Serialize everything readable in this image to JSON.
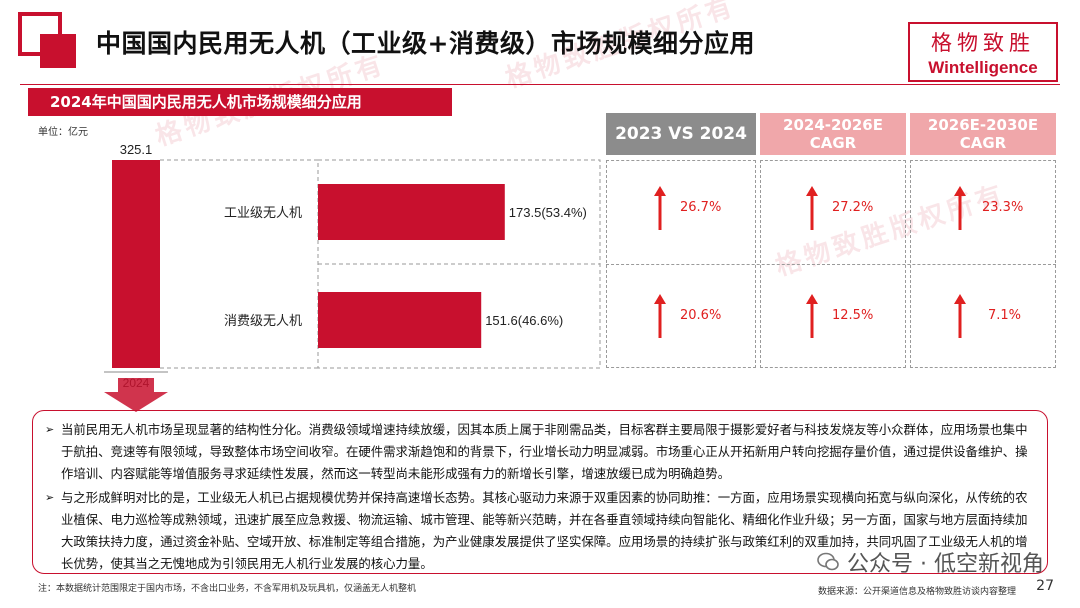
{
  "header": {
    "title": "中国国内民用无人机（工业级+消费级）市场规模细分应用",
    "brand_cn": "格物致胜",
    "brand_en": "Wintelligence"
  },
  "sub_banner": "2024年中国国内民用无人机市场规模细分应用",
  "unit_label": "单位：亿元",
  "watermark_text": "格物致胜版权所有",
  "colors": {
    "accent": "#c8102e",
    "gray_header": "#8c8c8c",
    "pink_header": "#f0a7aa",
    "value_red": "#e02020"
  },
  "chart_data": {
    "type": "bar",
    "total": {
      "label": "325.1",
      "value": 325.1,
      "year": "2024"
    },
    "categories": [
      "工业级无人机",
      "消费级无人机"
    ],
    "values": [
      173.5,
      151.6
    ],
    "data_labels": [
      "173.5(53.4%)",
      "151.6(46.6%)"
    ],
    "shares_percent": [
      53.4,
      46.6
    ]
  },
  "growth_table": {
    "headers": [
      "2023 VS 2024",
      "2024-2026E\nCAGR",
      "2026E-2030E\nCAGR"
    ],
    "rows": [
      {
        "segment": "工业级无人机",
        "values": [
          "26.7%",
          "27.2%",
          "23.3%"
        ],
        "trend": [
          "up",
          "up",
          "up"
        ]
      },
      {
        "segment": "消费级无人机",
        "values": [
          "20.6%",
          "12.5%",
          "7.1%"
        ],
        "trend": [
          "up",
          "up",
          "up"
        ]
      }
    ]
  },
  "notes": [
    "当前民用无人机市场呈现显著的结构性分化。消费级领域增速持续放缓，因其本质上属于非刚需品类，目标客群主要局限于摄影爱好者与科技发烧友等小众群体，应用场景也集中于航拍、竞速等有限领域，导致整体市场空间收窄。在硬件需求渐趋饱和的背景下，行业增长动力明显减弱。市场重心正从开拓新用户转向挖掘存量价值，通过提供设备维护、操作培训、内容赋能等增值服务寻求延续性发展，然而这一转型尚未能形成强有力的新增长引擎，增速放缓已成为明确趋势。",
    "与之形成鲜明对比的是，工业级无人机已占据规模优势并保持高速增长态势。其核心驱动力来源于双重因素的协同助推：一方面，应用场景实现横向拓宽与纵向深化，从传统的农业植保、电力巡检等成熟领域，迅速扩展至应急救援、物流运输、城市管理、能等新兴范畴，并在各垂直领域持续向智能化、精细化作业升级；另一方面，国家与地方层面持续加大政策扶持力度，通过资金补贴、空域开放、标准制定等组合措施，为产业健康发展提供了坚实保障。应用场景的持续扩张与政策红利的双重加持，共同巩固了工业级无人机的增长优势，使其当之无愧地成为引领民用无人机行业发展的核心力量。"
  ],
  "footnote": "注：本数据统计范围限定于国内市场，不含出口业务，不含军用机及玩具机，仅涵盖无人机整机",
  "wechat": "公众号 · 低空新视角",
  "source": "数据来源：公开渠道信息及格物致胜访谈内容整理",
  "page_number": "27"
}
